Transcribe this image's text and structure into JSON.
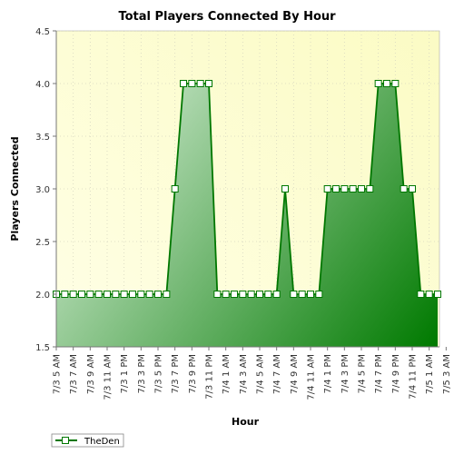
{
  "chart_data": {
    "type": "area",
    "title": "Total Players Connected By Hour",
    "xlabel": "Hour",
    "ylabel": "Players Connected",
    "ylim": [
      1.5,
      4.5
    ],
    "yticks": [
      "1.5",
      "2.0",
      "2.5",
      "3.0",
      "3.5",
      "4.0",
      "4.5"
    ],
    "x_tick_labels": [
      "7/3 5 AM",
      "7/3 7 AM",
      "7/3 9 AM",
      "7/3 11 AM",
      "7/3 1 PM",
      "7/3 3 PM",
      "7/3 5 PM",
      "7/3 7 PM",
      "7/3 9 PM",
      "7/3 11 PM",
      "7/4 1 AM",
      "7/4 3 AM",
      "7/4 5 AM",
      "7/4 7 AM",
      "7/4 9 AM",
      "7/4 11 AM",
      "7/4 1 PM",
      "7/4 3 PM",
      "7/4 5 PM",
      "7/4 7 PM",
      "7/4 9 PM",
      "7/4 11 PM",
      "7/5 1 AM",
      "7/5 3 AM"
    ],
    "grid": true,
    "legend_position": "bottom-left",
    "colors": {
      "plot_bg_light": "#ffffe6",
      "plot_bg_dark": "#fbfbc4",
      "area_light": "#d8eed8",
      "area_dark": "#007a00",
      "line": "#007700"
    },
    "series": [
      {
        "name": "TheDen",
        "values": [
          2,
          2,
          2,
          2,
          2,
          2,
          2,
          2,
          2,
          2,
          2,
          2,
          2,
          2,
          3,
          4,
          4,
          4,
          4,
          2,
          2,
          2,
          2,
          2,
          2,
          2,
          2,
          3,
          2,
          2,
          2,
          2,
          3,
          3,
          3,
          3,
          3,
          3,
          4,
          4,
          4,
          3,
          3,
          2,
          2,
          2
        ]
      }
    ]
  }
}
